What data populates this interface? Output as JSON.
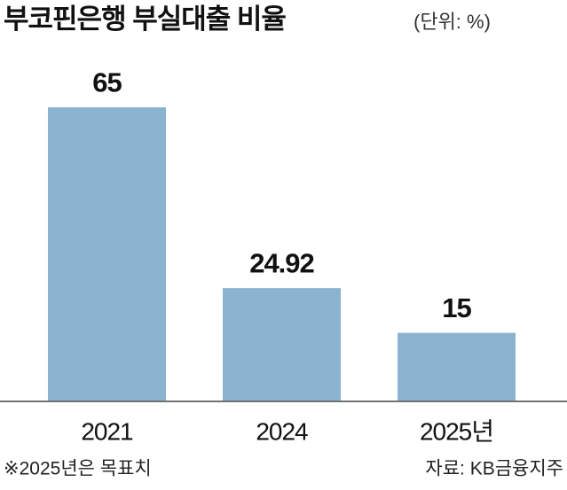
{
  "chart_data": {
    "type": "bar",
    "title": "부코핀은행 부실대출 비율",
    "subtitle": "(단위: %)",
    "categories": [
      "2021",
      "2024",
      "2025년"
    ],
    "values": [
      65,
      24.92,
      15
    ],
    "color": "#8ab3cf",
    "footnote": "※2025년은 목표치",
    "source": "자료: KB금융지주"
  }
}
